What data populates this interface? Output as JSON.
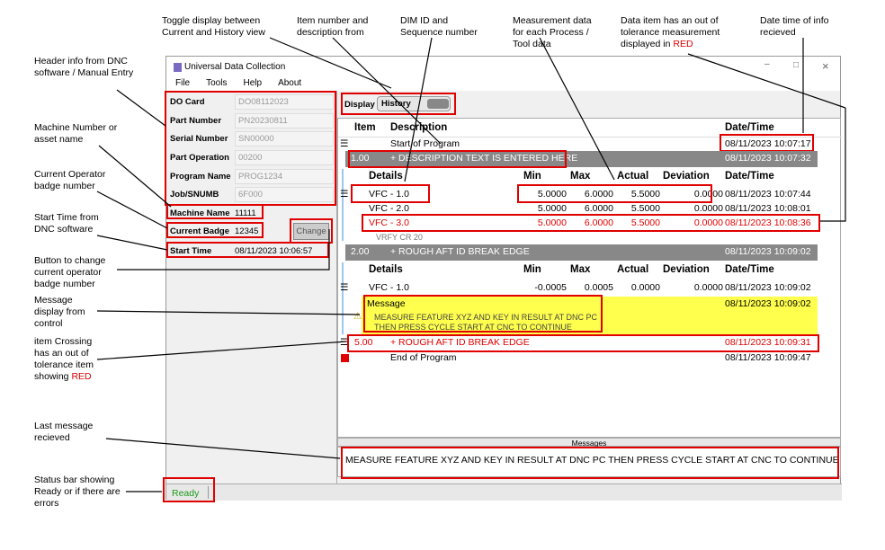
{
  "annotations": {
    "toggle": "Toggle display between Current and History view",
    "item_desc": "Item number and description from",
    "dim_id": "DIM ID and Sequence number",
    "measurement": "Measurement data for each Process / Tool data",
    "out_tol": "Data item has an out of tolerance measurement displayed in",
    "out_tol_red": "RED",
    "datetime": "Date time of info recieved",
    "header": "Header info from DNC software / Manual Entry",
    "machine": "Machine Number or asset name",
    "badge": "Current Operator badge number",
    "start": "Start Time from DNC software",
    "change_btn": "Button to change current operator badge number",
    "message": "Message display from control",
    "crossing": "item Crossing has an out of tolerance item showing",
    "crossing_red": "RED",
    "last_msg": "Last message recieved",
    "status": "Status bar showing Ready or if there are errors"
  },
  "window": {
    "title": "Universal Data Collection",
    "menu": [
      "File",
      "Tools",
      "Help",
      "About"
    ]
  },
  "header": {
    "fields": [
      {
        "label": "DO Card",
        "value": "DO08112023"
      },
      {
        "label": "Part Number",
        "value": "PN20230811"
      },
      {
        "label": "Serial Number",
        "value": "SN00000"
      },
      {
        "label": "Part Operation",
        "value": "00200"
      },
      {
        "label": "Program Name",
        "value": "PROG1234"
      },
      {
        "label": "Job/SNUMB",
        "value": "6F000"
      }
    ],
    "machine_label": "Machine Name",
    "machine_value": "11111",
    "badge_label": "Current Badge",
    "badge_value": "12345",
    "change": "Change",
    "start_label": "Start Time",
    "start_value": "08/11/2023 10:06:57"
  },
  "display": {
    "label": "Display",
    "value": "History"
  },
  "grid": {
    "cols": {
      "item": "Item",
      "desc": "Description",
      "date": "Date/Time"
    },
    "sub": {
      "details": "Details",
      "min": "Min",
      "max": "Max",
      "actual": "Actual",
      "dev": "Deviation",
      "date": "Date/Time"
    },
    "start": {
      "desc": "Start of Program",
      "date": "08/11/2023 10:07:17"
    },
    "item1": {
      "item": "1.00",
      "desc": "+ DESCRIPTION TEXT IS ENTERED HERE",
      "date": "08/11/2023 10:07:32"
    },
    "d1": [
      {
        "name": "VFC - 1.0",
        "min": "5.0000",
        "max": "6.0000",
        "actual": "5.5000",
        "dev": "0.0000",
        "date": "08/11/2023 10:07:44"
      },
      {
        "name": "VFC - 2.0",
        "min": "5.0000",
        "max": "6.0000",
        "actual": "5.5000",
        "dev": "0.0000",
        "date": "08/11/2023 10:08:01"
      },
      {
        "name": "VFC - 3.0",
        "min": "5.0000",
        "max": "6.0000",
        "actual": "5.5000",
        "dev": "0.0000",
        "date": "08/11/2023 10:08:36"
      }
    ],
    "vrfy": "VRFY CR 20",
    "item2": {
      "item": "2.00",
      "desc": "+ ROUGH AFT ID BREAK EDGE",
      "date": "08/11/2023 10:09:02"
    },
    "d2": {
      "name": "VFC - 1.0",
      "min": "-0.0005",
      "max": "0.0005",
      "actual": "0.0000",
      "dev": "0.0000",
      "date": "08/11/2023 10:09:02"
    },
    "msg": {
      "title": "Message",
      "date": "08/11/2023 10:09:02",
      "line1": "MEASURE FEATURE XYZ AND KEY IN RESULT AT DNC PC",
      "line2": "THEN PRESS CYCLE START AT CNC TO CONTINUE"
    },
    "item5": {
      "item": "5.00",
      "desc": "+ ROUGH AFT ID BREAK EDGE",
      "date": "08/11/2023 10:09:31"
    },
    "end": {
      "desc": "End of Program",
      "date": "08/11/2023 10:09:47"
    }
  },
  "messages": {
    "title": "Messages",
    "text": "MEASURE FEATURE XYZ AND KEY IN RESULT AT DNC PC THEN PRESS CYCLE START AT CNC TO CONTINUE"
  },
  "status": {
    "text": "Ready"
  },
  "colors": {
    "error": "#e00000",
    "message": "#ffff4d",
    "group_row": "#888888",
    "ready": "#1a9a1a"
  }
}
